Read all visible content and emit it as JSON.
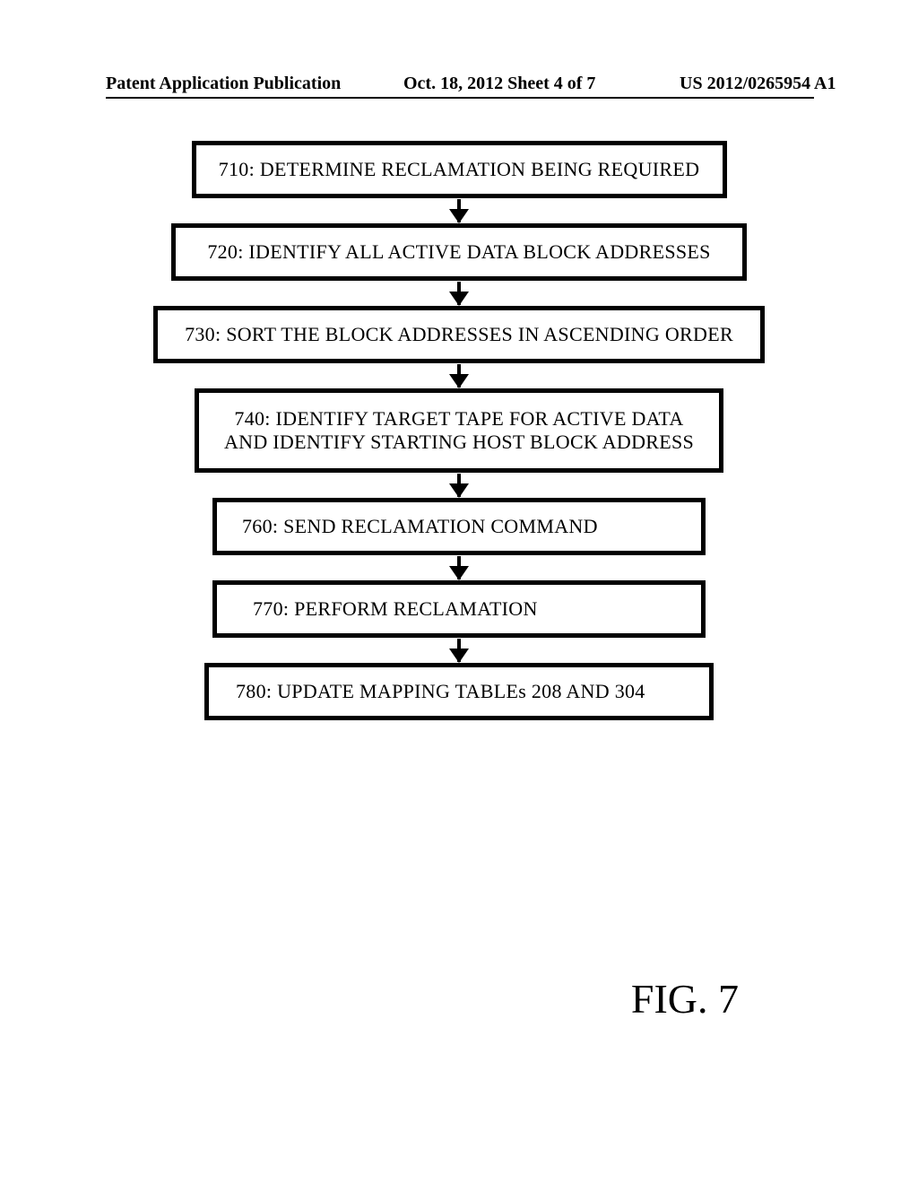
{
  "header": {
    "left": "Patent Application Publication",
    "mid": "Oct. 18, 2012   Sheet 4 of 7",
    "right": "US 2012/0265954 A1"
  },
  "flow": {
    "type": "flowchart-linear",
    "box_border_color": "#000000",
    "box_bg_color": "#ffffff",
    "arrow_color": "#000000",
    "font_family": "Times New Roman",
    "font_size_pt": 16,
    "steps": [
      {
        "id": "710",
        "text": "710: DETERMINE RECLAMATION BEING REQUIRED",
        "w": "w1"
      },
      {
        "id": "720",
        "text": "720: IDENTIFY ALL ACTIVE DATA BLOCK ADDRESSES",
        "w": "w2"
      },
      {
        "id": "730",
        "text": "730:  SORT THE BLOCK ADDRESSES IN ASCENDING ORDER",
        "w": "w3"
      },
      {
        "id": "740",
        "text": "740:  IDENTIFY TARGET TAPE FOR ACTIVE  DATA\nAND IDENTIFY STARTING HOST BLOCK ADDRESS",
        "w": "w4"
      },
      {
        "id": "760",
        "text": "760: SEND RECLAMATION COMMAND",
        "w": "w5"
      },
      {
        "id": "770",
        "text": "770:  PERFORM RECLAMATION",
        "w": "w6"
      },
      {
        "id": "780",
        "text": "780: UPDATE   MAPPING  TABLEs 208 AND 304",
        "w": "w7"
      }
    ]
  },
  "figure_label": "FIG. 7"
}
